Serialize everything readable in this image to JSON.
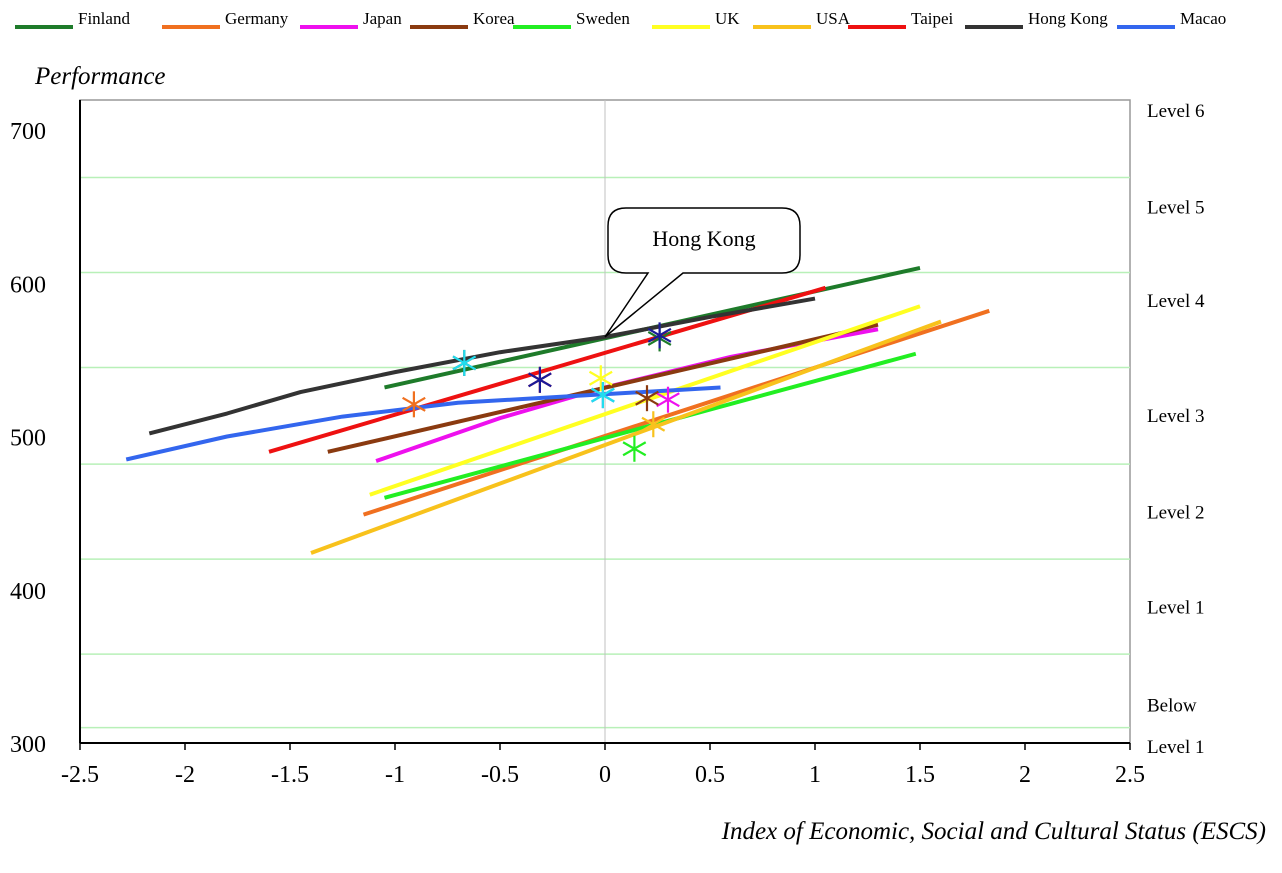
{
  "chart_data": {
    "type": "line",
    "title": "",
    "ylabel": "Performance",
    "xlabel": "Index of Economic, Social and Cultural Status (ESCS)",
    "xlim": [
      -2.5,
      2.5
    ],
    "ylim": [
      300,
      700
    ],
    "x_ticks": [
      "-2.5",
      "-2",
      "-1.5",
      "-1",
      "-0.5",
      "0",
      "0.5",
      "1",
      "1.5",
      "2",
      "2.5"
    ],
    "y_ticks": [
      "300",
      "400",
      "500",
      "600",
      "700"
    ],
    "level_labels": [
      {
        "label": "Level 6",
        "y": 713
      },
      {
        "label": "Level 5",
        "y": 650
      },
      {
        "label": "Level 4",
        "y": 589
      },
      {
        "label": "Level 3",
        "y": 514
      },
      {
        "label": "Level 2",
        "y": 451
      },
      {
        "label": "Level 1",
        "y": 389
      },
      {
        "label": "Below",
        "y": 325
      },
      {
        "label": "Level 1",
        "y": 298
      }
    ],
    "level_thresholds": [
      310,
      358,
      420,
      482,
      545,
      607,
      669
    ],
    "grid": "horizontal",
    "legend_position": "top",
    "series": [
      {
        "name": "Finland",
        "color": "#1e7b2a",
        "x": [
          -1.05,
          1.5
        ],
        "y": [
          532,
          610
        ],
        "marker": [
          0.26,
          564
        ]
      },
      {
        "name": "Germany",
        "color": "#f07020",
        "x": [
          -1.15,
          1.83
        ],
        "y": [
          449,
          582
        ],
        "marker": [
          -0.91,
          521
        ]
      },
      {
        "name": "Japan",
        "color": "#ee10ee",
        "x": [
          -1.09,
          -0.5,
          0,
          0.6,
          1.3
        ],
        "y": [
          484,
          512,
          532,
          552,
          570
        ],
        "marker": [
          0.3,
          524
        ]
      },
      {
        "name": "Korea",
        "color": "#8a3a10",
        "x": [
          -1.32,
          1.3
        ],
        "y": [
          490,
          573
        ],
        "marker": [
          0.2,
          525
        ]
      },
      {
        "name": "Sweden",
        "color": "#22ee22",
        "x": [
          -1.05,
          1.48
        ],
        "y": [
          460,
          554
        ],
        "marker": [
          0.14,
          492
        ]
      },
      {
        "name": "UK",
        "color": "#ffff22",
        "x": [
          -1.12,
          1.5
        ],
        "y": [
          462,
          585
        ],
        "marker": [
          -0.02,
          538
        ]
      },
      {
        "name": "USA",
        "color": "#f8c21c",
        "x": [
          -1.4,
          1.6
        ],
        "y": [
          424,
          575
        ],
        "marker": [
          0.23,
          508
        ]
      },
      {
        "name": "Taipei",
        "color": "#ee1111",
        "x": [
          -1.6,
          1.05
        ],
        "y": [
          490,
          597
        ],
        "marker": [
          -0.31,
          537
        ]
      },
      {
        "name": "Hong Kong",
        "color": "#333333",
        "x": [
          -2.17,
          -1.8,
          -1.45,
          -1.0,
          -0.5,
          0,
          0.5,
          1.0
        ],
        "y": [
          502,
          515,
          529,
          542,
          555,
          565,
          578,
          590
        ],
        "marker": [
          -0.67,
          548
        ]
      },
      {
        "name": "Macao",
        "color": "#3366ee",
        "x": [
          -2.28,
          -1.8,
          -1.25,
          -0.7,
          -0.2,
          0.55
        ],
        "y": [
          485,
          500,
          513,
          522,
          526,
          532
        ],
        "marker": [
          -0.01,
          527
        ]
      }
    ],
    "markers_extra": [
      {
        "color": "#22ddee",
        "point": [
          -0.67,
          548
        ]
      },
      {
        "color": "#22ddee",
        "point": [
          -0.01,
          527
        ]
      },
      {
        "color": "#1a1a99",
        "point": [
          0.26,
          566
        ]
      },
      {
        "color": "#1a1a99",
        "point": [
          -0.31,
          537
        ]
      }
    ],
    "annotations": [
      {
        "text": "Hong Kong",
        "target": [
          0,
          565
        ]
      }
    ]
  }
}
